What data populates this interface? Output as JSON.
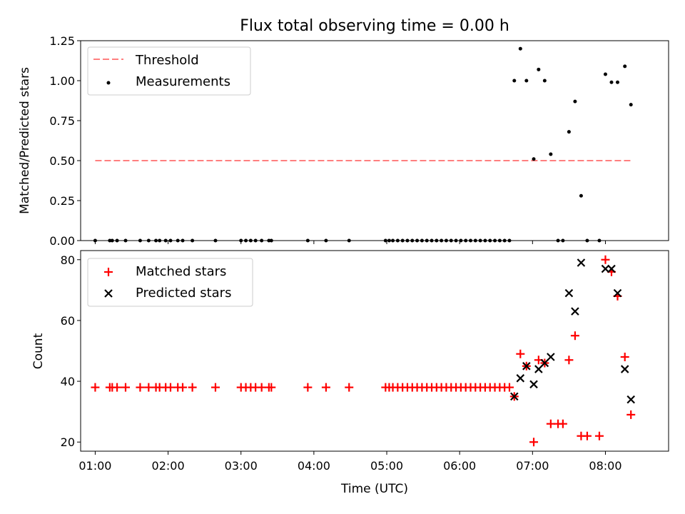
{
  "chart_data": [
    {
      "type": "scatter",
      "title": "Flux total observing time = 0.00 h",
      "xlabel": "",
      "ylabel": "Matched/Predicted stars",
      "xlim": [
        "00:48",
        "08:52"
      ],
      "ylim": [
        0,
        1.25
      ],
      "yticks": [
        "0.00",
        "0.25",
        "0.50",
        "0.75",
        "1.00",
        "1.25"
      ],
      "legend_position": "top-left",
      "grid": false,
      "series": [
        {
          "name": "Threshold",
          "kind": "dashed-line",
          "color": "#ff7f7f",
          "points": [
            [
              "01:00",
              0.5
            ],
            [
              "08:21",
              0.5
            ]
          ]
        },
        {
          "name": "Measurements",
          "kind": "dots",
          "color": "#000000",
          "points": [
            [
              "01:00",
              0
            ],
            [
              "01:12",
              0
            ],
            [
              "01:14",
              0
            ],
            [
              "01:18",
              0
            ],
            [
              "01:25",
              0
            ],
            [
              "01:37",
              0
            ],
            [
              "01:44",
              0
            ],
            [
              "01:50",
              0
            ],
            [
              "01:53",
              0
            ],
            [
              "01:58",
              0
            ],
            [
              "02:02",
              0
            ],
            [
              "02:08",
              0
            ],
            [
              "02:12",
              0
            ],
            [
              "02:20",
              0
            ],
            [
              "02:39",
              0
            ],
            [
              "03:00",
              0
            ],
            [
              "03:04",
              0
            ],
            [
              "03:08",
              0
            ],
            [
              "03:12",
              0
            ],
            [
              "03:17",
              0
            ],
            [
              "03:23",
              0
            ],
            [
              "03:25",
              0
            ],
            [
              "03:55",
              0
            ],
            [
              "04:10",
              0
            ],
            [
              "04:29",
              0
            ],
            [
              "04:59",
              0
            ],
            [
              "05:02",
              0
            ],
            [
              "05:05",
              0
            ],
            [
              "05:09",
              0
            ],
            [
              "05:13",
              0
            ],
            [
              "05:17",
              0
            ],
            [
              "05:21",
              0
            ],
            [
              "05:25",
              0
            ],
            [
              "05:29",
              0
            ],
            [
              "05:33",
              0
            ],
            [
              "05:37",
              0
            ],
            [
              "05:41",
              0
            ],
            [
              "05:45",
              0
            ],
            [
              "05:49",
              0
            ],
            [
              "05:53",
              0
            ],
            [
              "05:57",
              0
            ],
            [
              "06:01",
              0
            ],
            [
              "06:05",
              0
            ],
            [
              "06:09",
              0
            ],
            [
              "06:13",
              0
            ],
            [
              "06:17",
              0
            ],
            [
              "06:21",
              0
            ],
            [
              "06:25",
              0
            ],
            [
              "06:29",
              0
            ],
            [
              "06:33",
              0
            ],
            [
              "06:37",
              0
            ],
            [
              "06:41",
              0
            ],
            [
              "06:45",
              1.0
            ],
            [
              "06:50",
              1.2
            ],
            [
              "06:55",
              1.0
            ],
            [
              "07:01",
              0.51
            ],
            [
              "07:05",
              1.07
            ],
            [
              "07:10",
              1.0
            ],
            [
              "07:15",
              0.54
            ],
            [
              "07:21",
              0
            ],
            [
              "07:25",
              0
            ],
            [
              "07:30",
              0.68
            ],
            [
              "07:35",
              0.87
            ],
            [
              "07:40",
              0.28
            ],
            [
              "07:45",
              0
            ],
            [
              "07:55",
              0
            ],
            [
              "08:00",
              1.04
            ],
            [
              "08:05",
              0.99
            ],
            [
              "08:10",
              0.99
            ],
            [
              "08:16",
              1.09
            ],
            [
              "08:21",
              0.85
            ]
          ]
        }
      ]
    },
    {
      "type": "scatter",
      "title": "",
      "xlabel": "Time (UTC)",
      "ylabel": "Count",
      "xlim": [
        "00:48",
        "08:52"
      ],
      "ylim": [
        17,
        83
      ],
      "yticks": [
        "20",
        "40",
        "60",
        "80"
      ],
      "xticks": [
        "01:00",
        "02:00",
        "03:00",
        "04:00",
        "05:00",
        "06:00",
        "07:00",
        "08:00"
      ],
      "legend_position": "top-left",
      "grid": false,
      "series": [
        {
          "name": "Matched stars",
          "kind": "plus",
          "color": "#ff0000",
          "points": [
            [
              "01:00",
              38
            ],
            [
              "01:12",
              38
            ],
            [
              "01:14",
              38
            ],
            [
              "01:18",
              38
            ],
            [
              "01:25",
              38
            ],
            [
              "01:37",
              38
            ],
            [
              "01:44",
              38
            ],
            [
              "01:50",
              38
            ],
            [
              "01:53",
              38
            ],
            [
              "01:58",
              38
            ],
            [
              "02:02",
              38
            ],
            [
              "02:08",
              38
            ],
            [
              "02:12",
              38
            ],
            [
              "02:20",
              38
            ],
            [
              "02:39",
              38
            ],
            [
              "03:00",
              38
            ],
            [
              "03:04",
              38
            ],
            [
              "03:08",
              38
            ],
            [
              "03:12",
              38
            ],
            [
              "03:17",
              38
            ],
            [
              "03:23",
              38
            ],
            [
              "03:25",
              38
            ],
            [
              "03:55",
              38
            ],
            [
              "04:10",
              38
            ],
            [
              "04:29",
              38
            ],
            [
              "04:59",
              38
            ],
            [
              "05:02",
              38
            ],
            [
              "05:05",
              38
            ],
            [
              "05:09",
              38
            ],
            [
              "05:13",
              38
            ],
            [
              "05:17",
              38
            ],
            [
              "05:21",
              38
            ],
            [
              "05:25",
              38
            ],
            [
              "05:29",
              38
            ],
            [
              "05:33",
              38
            ],
            [
              "05:37",
              38
            ],
            [
              "05:41",
              38
            ],
            [
              "05:45",
              38
            ],
            [
              "05:49",
              38
            ],
            [
              "05:53",
              38
            ],
            [
              "05:57",
              38
            ],
            [
              "06:01",
              38
            ],
            [
              "06:05",
              38
            ],
            [
              "06:09",
              38
            ],
            [
              "06:13",
              38
            ],
            [
              "06:17",
              38
            ],
            [
              "06:21",
              38
            ],
            [
              "06:25",
              38
            ],
            [
              "06:29",
              38
            ],
            [
              "06:33",
              38
            ],
            [
              "06:37",
              38
            ],
            [
              "06:41",
              38
            ],
            [
              "06:45",
              35
            ],
            [
              "06:50",
              49
            ],
            [
              "06:55",
              45
            ],
            [
              "07:01",
              20
            ],
            [
              "07:05",
              47
            ],
            [
              "07:10",
              46
            ],
            [
              "07:15",
              26
            ],
            [
              "07:21",
              26
            ],
            [
              "07:25",
              26
            ],
            [
              "07:30",
              47
            ],
            [
              "07:35",
              55
            ],
            [
              "07:40",
              22
            ],
            [
              "07:45",
              22
            ],
            [
              "07:55",
              22
            ],
            [
              "08:00",
              80
            ],
            [
              "08:05",
              76
            ],
            [
              "08:10",
              68
            ],
            [
              "08:16",
              48
            ],
            [
              "08:21",
              29
            ]
          ]
        },
        {
          "name": "Predicted stars",
          "kind": "cross",
          "color": "#000000",
          "points": [
            [
              "06:45",
              35
            ],
            [
              "06:50",
              41
            ],
            [
              "06:55",
              45
            ],
            [
              "07:01",
              39
            ],
            [
              "07:05",
              44
            ],
            [
              "07:10",
              46
            ],
            [
              "07:15",
              48
            ],
            [
              "07:30",
              69
            ],
            [
              "07:35",
              63
            ],
            [
              "07:40",
              79
            ],
            [
              "08:00",
              77
            ],
            [
              "08:05",
              77
            ],
            [
              "08:10",
              69
            ],
            [
              "08:16",
              44
            ],
            [
              "08:21",
              34
            ]
          ]
        }
      ]
    }
  ]
}
